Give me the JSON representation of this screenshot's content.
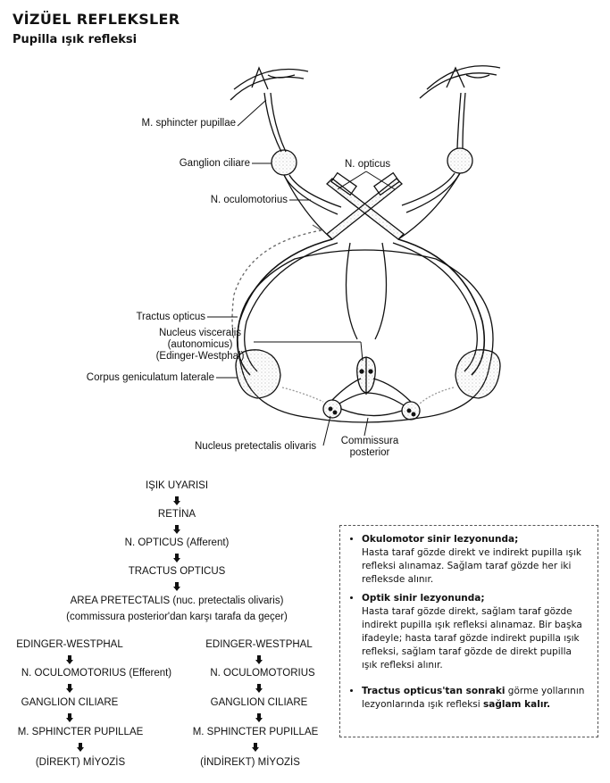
{
  "header": {
    "title": "VİZÜEL REFLEKSLER",
    "subtitle": "Pupilla ışık refleksi"
  },
  "diagram": {
    "labels": {
      "sphincter": "M. sphincter pupillae",
      "ganglion_ciliare": "Ganglion ciliare",
      "n_opticus": "N. opticus",
      "n_oculomotorius": "N. oculomotorius",
      "tractus_opticus": "Tractus opticus",
      "nucleus_visceralis_1": "Nucleus visceralis",
      "nucleus_visceralis_2": "(autonomicus)",
      "nucleus_visceralis_3": "(Edinger-Westphal)",
      "corpus_geniculatum": "Corpus geniculatum laterale",
      "nucleus_pretectalis": "Nucleus pretectalis olivaris",
      "commissura_1": "Commissura",
      "commissura_2": "posterior"
    }
  },
  "flow": {
    "main_steps": [
      "IŞIK UYARISI",
      "RETİNA",
      "N. OPTICUS (Afferent)",
      "TRACTUS OPTICUS",
      "AREA PRETECTALIS (nuc. pretectalis olivaris)",
      "(commissura posterior'dan karşı tarafa da geçer)"
    ],
    "left_branch": [
      "EDINGER-WESTPHAL",
      "N. OCULOMOTORIUS (Efferent)",
      "GANGLION CILIARE",
      "M. SPHINCTER PUPILLAE",
      "(DİREKT) MİYOZİS"
    ],
    "right_branch": [
      "EDINGER-WESTPHAL",
      "N. OCULOMOTORIUS",
      "GANGLION CILIARE",
      "M. SPHINCTER PUPILLAE",
      "(İNDİREKT) MİYOZİS"
    ]
  },
  "notes": {
    "item1_heading": "Okulomotor sinir lezyonunda;",
    "item1_text": "Hasta taraf gözde direkt ve indirekt pupilla ışık refleksi alınamaz. Sağlam taraf gözde her iki refleksde alınır.",
    "item2_heading": "Optik sinir lezyonunda;",
    "item2_text": "Hasta taraf gözde direkt, sağlam taraf gözde indirekt pupilla ışık refleksi alınamaz. Bir başka ifadeyle; hasta taraf gözde indirekt pupilla ışık refleksi, sağlam taraf gözde de direkt pupilla ışık refleksi alınır.",
    "item3_bold1": "Tractus opticus'tan sonraki",
    "item3_text1": " görme yollarının lezyonlarında ışık refleksi ",
    "item3_bold2": "sağlam kalır."
  }
}
